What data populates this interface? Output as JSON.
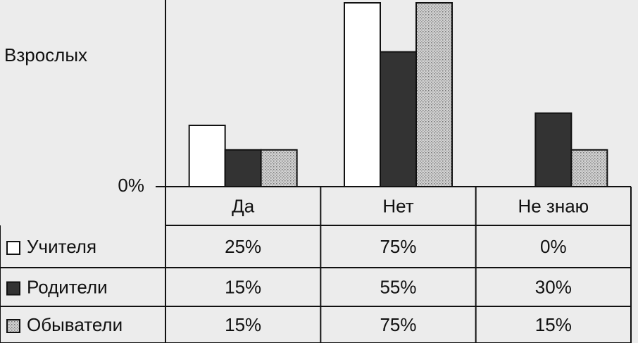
{
  "chart_data": {
    "type": "bar",
    "y_label": "Взрослых",
    "categories": [
      "Да",
      "Нет",
      "Не знаю"
    ],
    "series": [
      {
        "name": "Учителя",
        "color": "#ffffff",
        "values": [
          25,
          75,
          0
        ],
        "value_labels": [
          "25%",
          "75%",
          "0%"
        ]
      },
      {
        "name": "Родители",
        "color": "#333333",
        "values": [
          15,
          55,
          30
        ],
        "value_labels": [
          "15%",
          "55%",
          "30%"
        ]
      },
      {
        "name": "Обыватели",
        "color": "#c4c4c4",
        "values": [
          15,
          75,
          15
        ],
        "value_labels": [
          "15%",
          "75%",
          "15%"
        ]
      }
    ],
    "ylim": [
      0,
      75
    ],
    "yticks": [
      {
        "value": 0,
        "label": "0%"
      }
    ]
  }
}
